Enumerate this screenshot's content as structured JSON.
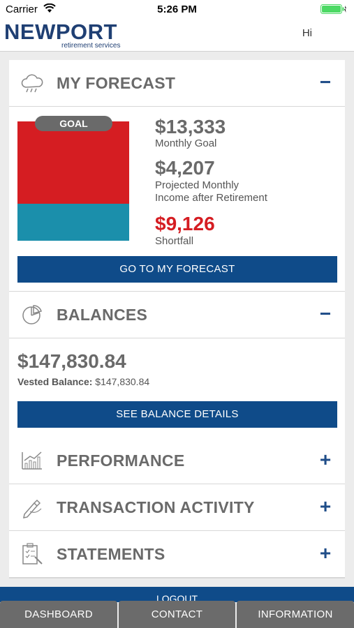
{
  "status_bar": {
    "carrier": "Carrier",
    "time": "5:26 PM"
  },
  "header": {
    "logo_main": "NEWPORT",
    "logo_sub": "retirement services",
    "greeting": "Hi"
  },
  "forecast": {
    "title": "MY FORECAST",
    "toggle": "−",
    "goal_pill": "GOAL",
    "monthly_goal": "$13,333",
    "monthly_goal_label": "Monthly Goal",
    "projected": "$4,207",
    "projected_label_1": "Projected Monthly",
    "projected_label_2": "Income after Retirement",
    "shortfall": "$9,126",
    "shortfall_label": "Shortfall",
    "button": "GO TO MY FORECAST"
  },
  "balances": {
    "title": "BALANCES",
    "toggle": "−",
    "amount": "$147,830.84",
    "vested_label": "Vested Balance:",
    "vested_value": "$147,830.84",
    "button": "SEE BALANCE DETAILS"
  },
  "sections": [
    {
      "title": "PERFORMANCE",
      "toggle": "+"
    },
    {
      "title": "TRANSACTION ACTIVITY",
      "toggle": "+"
    },
    {
      "title": "STATEMENTS",
      "toggle": "+"
    }
  ],
  "logout": "LOGOUT",
  "tabs": [
    "DASHBOARD",
    "CONTACT",
    "INFORMATION"
  ],
  "colors": {
    "brand": "#1f3f73",
    "button": "#0f4b89",
    "goal_red": "#d51d22",
    "goal_teal": "#1b8fab",
    "tab_bg": "#6b6b6b"
  }
}
